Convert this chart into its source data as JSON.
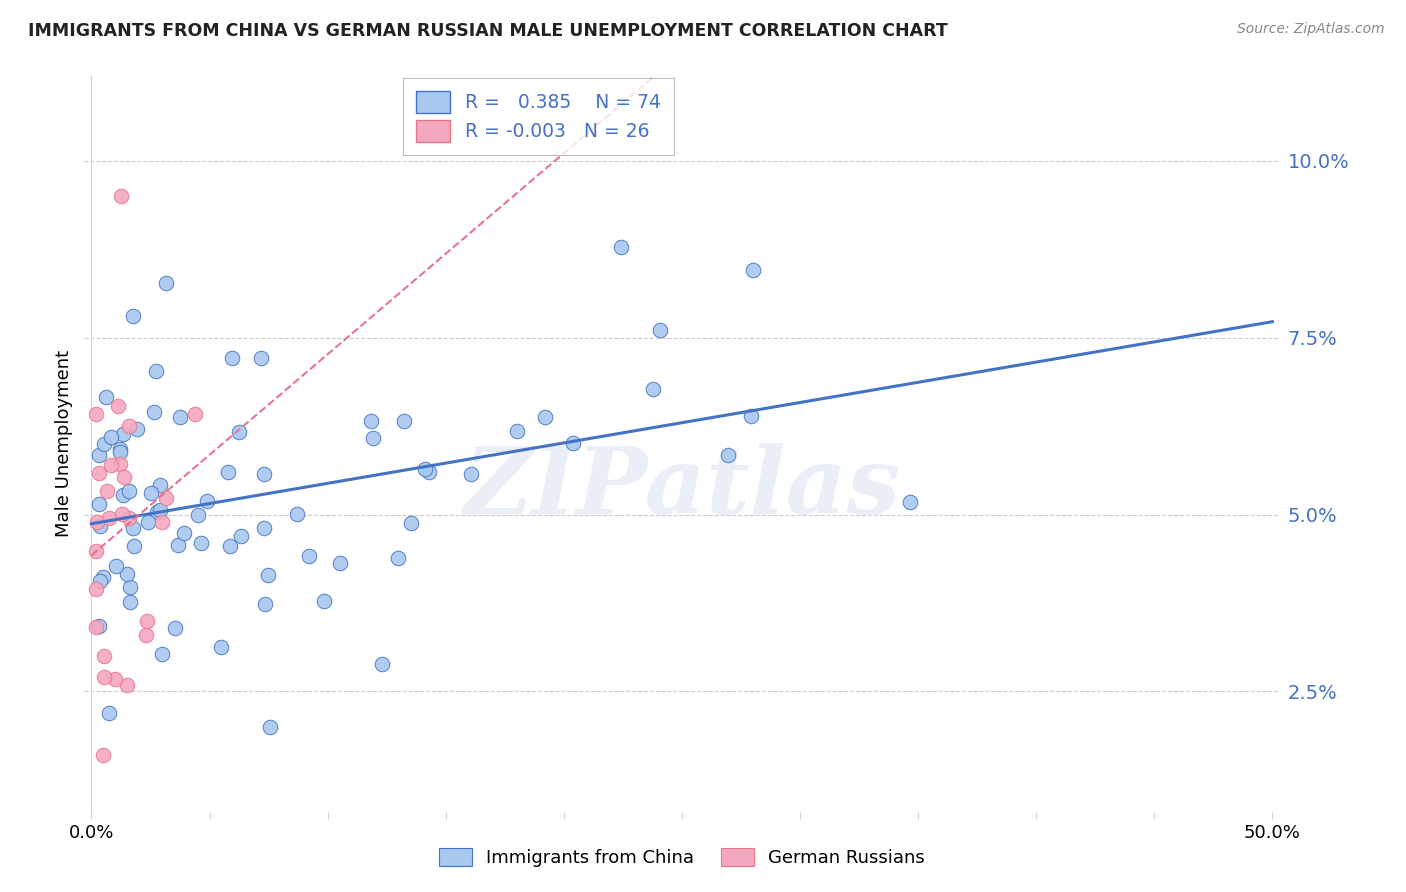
{
  "title": "IMMIGRANTS FROM CHINA VS GERMAN RUSSIAN MALE UNEMPLOYMENT CORRELATION CHART",
  "source_text": "Source: ZipAtlas.com",
  "ylabel": "Male Unemployment",
  "ytick_labels": [
    "2.5%",
    "5.0%",
    "7.5%",
    "10.0%"
  ],
  "ytick_values": [
    0.025,
    0.05,
    0.075,
    0.1
  ],
  "xlim": [
    -0.003,
    0.503
  ],
  "ylim": [
    0.008,
    0.112
  ],
  "legend1_label": "Immigrants from China",
  "legend2_label": "German Russians",
  "R1": 0.385,
  "N1": 74,
  "R2": -0.003,
  "N2": 26,
  "color_china": "#A8C8F0",
  "color_german": "#F4A8C0",
  "trendline1_color": "#4472C4",
  "trendline2_color": "#E8748A",
  "watermark": "ZIPatlas",
  "background_color": "#FFFFFF",
  "grid_color": "#CCCCCC",
  "title_color": "#222222",
  "source_color": "#888888",
  "tick_color": "#4472C4"
}
